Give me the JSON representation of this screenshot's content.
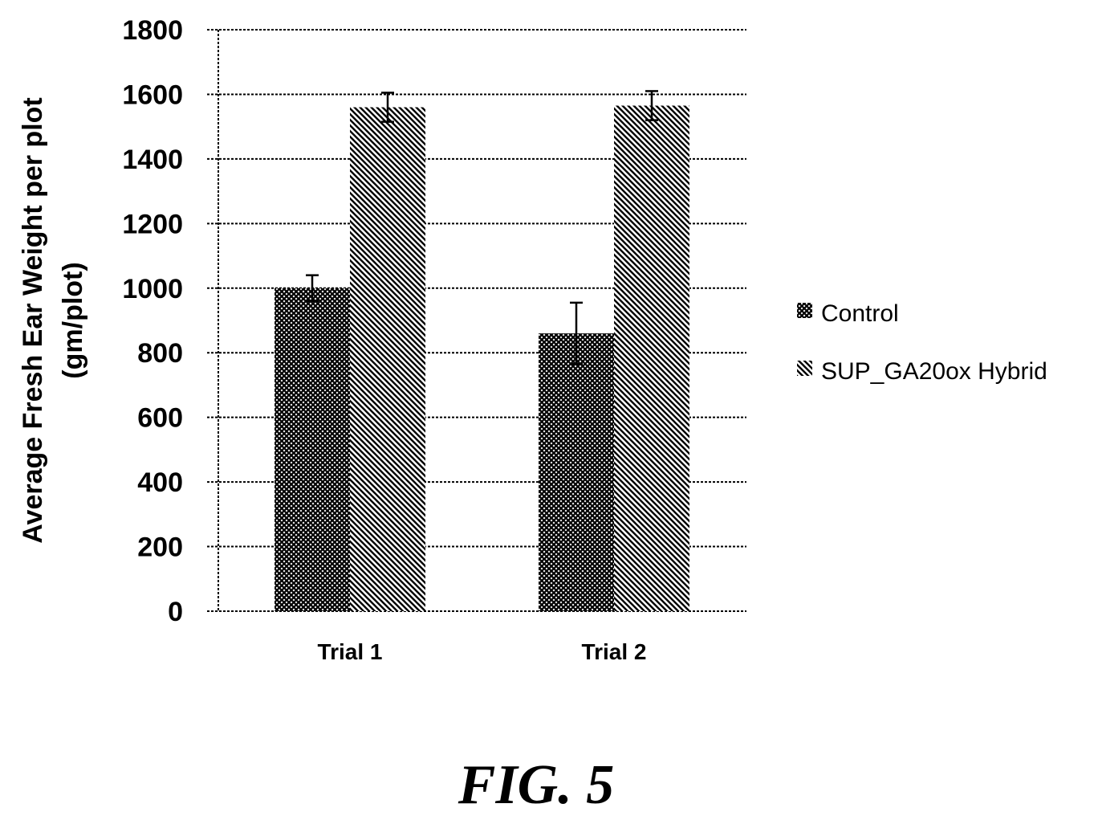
{
  "chart_data": {
    "type": "bar",
    "categories": [
      "Trial 1",
      "Trial 2"
    ],
    "series": [
      {
        "name": "Control",
        "values": [
          1000,
          860
        ],
        "errors": [
          40,
          95
        ],
        "pattern": "crosshatch"
      },
      {
        "name": "SUP_GA20ox Hybrid",
        "values": [
          1560,
          1565
        ],
        "errors": [
          45,
          45
        ],
        "pattern": "diagonal"
      }
    ],
    "ylabel": [
      "Average Fresh Ear Weight per plot",
      "(gm/plot)"
    ],
    "ylim": [
      0,
      1800
    ],
    "yticks": [
      0,
      200,
      400,
      600,
      800,
      1000,
      1200,
      1400,
      1600,
      1800
    ],
    "grid": true,
    "legend_position": "right"
  },
  "caption": "FIG. 5"
}
